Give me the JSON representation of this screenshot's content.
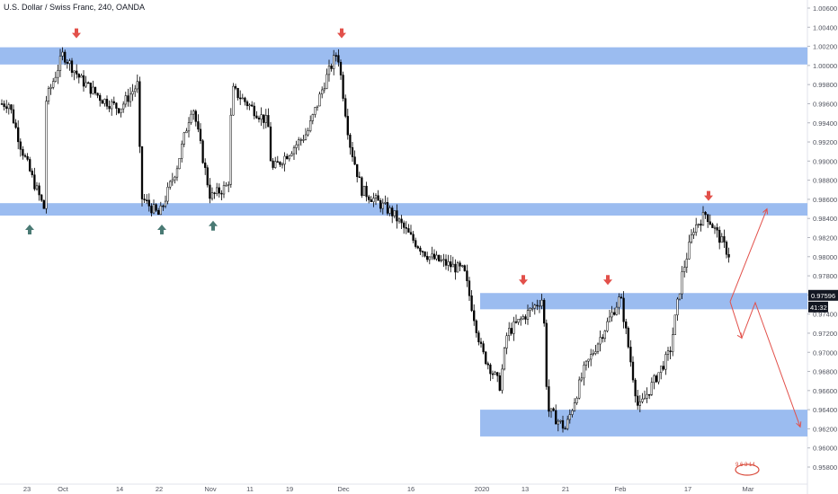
{
  "title": "U.S. Dollar / Swiss Franc, 240, OANDA",
  "price_tag": {
    "price": "0.97596",
    "countdown": "41:32",
    "bg": "#131722",
    "color": "#ffffff"
  },
  "colors": {
    "zone": "#9bbcf0",
    "candle": "#000000",
    "arrow_down": "#e2504a",
    "arrow_up": "#4a7a74",
    "projection": "#e2504a",
    "axis_text": "#50535e",
    "watermark": "#d94a3b"
  },
  "icons": {
    "down_marker": "arrow-down-icon",
    "up_marker": "arrow-up-icon",
    "watermark": "watermark-logo"
  },
  "chart_data": {
    "type": "candlestick",
    "title": "U.S. Dollar / Swiss Franc, 240, OANDA",
    "y_ticks": [
      "1.00600",
      "1.00400",
      "1.00200",
      "1.00000",
      "0.99800",
      "0.99600",
      "0.99400",
      "0.99200",
      "0.99000",
      "0.98800",
      "0.98600",
      "0.98400",
      "0.98200",
      "0.98000",
      "0.97800",
      "0.97600",
      "0.97400",
      "0.97200",
      "0.97000",
      "0.96800",
      "0.96600",
      "0.96400",
      "0.96200",
      "0.96000",
      "0.95800"
    ],
    "ylim": [
      0.957,
      1.007
    ],
    "x_ticks": [
      "23",
      "Oct",
      "14",
      "22",
      "Nov",
      "11",
      "19",
      "Dec",
      "16",
      "2020",
      "13",
      "21",
      "Feb",
      "17",
      "Mar"
    ],
    "last_price": 0.97596,
    "price_path": [
      {
        "x": "23",
        "y": 0.996
      },
      {
        "x": "23",
        "y": 0.9915
      },
      {
        "x": "23",
        "y": 0.988
      },
      {
        "x": "23",
        "y": 0.9848
      },
      {
        "x": "Oct",
        "y": 0.996
      },
      {
        "x": "Oct",
        "y": 1.0012
      },
      {
        "x": "Oct",
        "y": 0.9985
      },
      {
        "x": "14",
        "y": 0.9965
      },
      {
        "x": "14",
        "y": 0.9955
      },
      {
        "x": "14",
        "y": 0.998
      },
      {
        "x": "22",
        "y": 0.9862
      },
      {
        "x": "22",
        "y": 0.9843
      },
      {
        "x": "22",
        "y": 0.9895
      },
      {
        "x": "Nov",
        "y": 0.996
      },
      {
        "x": "Nov",
        "y": 0.9862
      },
      {
        "x": "Nov",
        "y": 0.9875
      },
      {
        "x": "11",
        "y": 0.9975
      },
      {
        "x": "11",
        "y": 0.994
      },
      {
        "x": "19",
        "y": 0.989
      },
      {
        "x": "19",
        "y": 0.993
      },
      {
        "x": "Dec",
        "y": 0.9985
      },
      {
        "x": "Dec",
        "y": 1.0015
      },
      {
        "x": "Dec",
        "y": 0.992
      },
      {
        "x": "Dec",
        "y": 0.987
      },
      {
        "x": "16",
        "y": 0.9845
      },
      {
        "x": "16",
        "y": 0.982
      },
      {
        "x": "16",
        "y": 0.98
      },
      {
        "x": "2020",
        "y": 0.9785
      },
      {
        "x": "2020",
        "y": 0.97
      },
      {
        "x": "2020",
        "y": 0.9665
      },
      {
        "x": "13",
        "y": 0.972
      },
      {
        "x": "13",
        "y": 0.9757
      },
      {
        "x": "21",
        "y": 0.964
      },
      {
        "x": "21",
        "y": 0.962
      },
      {
        "x": "21",
        "y": 0.968
      },
      {
        "x": "Feb",
        "y": 0.972
      },
      {
        "x": "Feb",
        "y": 0.9758
      },
      {
        "x": "Feb",
        "y": 0.964
      },
      {
        "x": "17",
        "y": 0.97
      },
      {
        "x": "17",
        "y": 0.978
      },
      {
        "x": "17",
        "y": 0.983
      },
      {
        "x": "17",
        "y": 0.9845
      },
      {
        "x": "Mar",
        "y": 0.98
      },
      {
        "x": "Mar",
        "y": 0.976
      }
    ],
    "zones": [
      {
        "from_x": "start",
        "to_x": "end",
        "low": 1.0001,
        "high": 1.0019
      },
      {
        "from_x": "start",
        "to_x": "end",
        "low": 0.9843,
        "high": 0.9856
      },
      {
        "from_x": "13",
        "to_x": "end",
        "low": 0.9745,
        "high": 0.9762
      },
      {
        "from_x": "13",
        "to_x": "end",
        "low": 0.9612,
        "high": 0.964
      }
    ],
    "down_markers": [
      {
        "x": "Oct",
        "y": 1.002
      },
      {
        "x": "Dec",
        "y": 1.002
      },
      {
        "x": "13",
        "y": 0.9762
      },
      {
        "x": "Feb",
        "y": 0.9762
      },
      {
        "x": "17",
        "y": 0.985
      }
    ],
    "up_markers": [
      {
        "x": "23",
        "y": 0.9843
      },
      {
        "x": "22",
        "y": 0.9843
      },
      {
        "x": "Nov",
        "y": 0.9847
      }
    ],
    "projections": [
      {
        "points": [
          [
            0.9753,
            0.9753
          ],
          [
            0.985,
            0.985
          ]
        ]
      },
      {
        "points": [
          [
            0.9753,
            0.9753
          ],
          [
            0.9715,
            0.9715
          ],
          [
            0.9752,
            0.9752
          ],
          [
            0.9622,
            0.9622
          ]
        ]
      }
    ],
    "watermark_text": "9 6 3 14"
  }
}
